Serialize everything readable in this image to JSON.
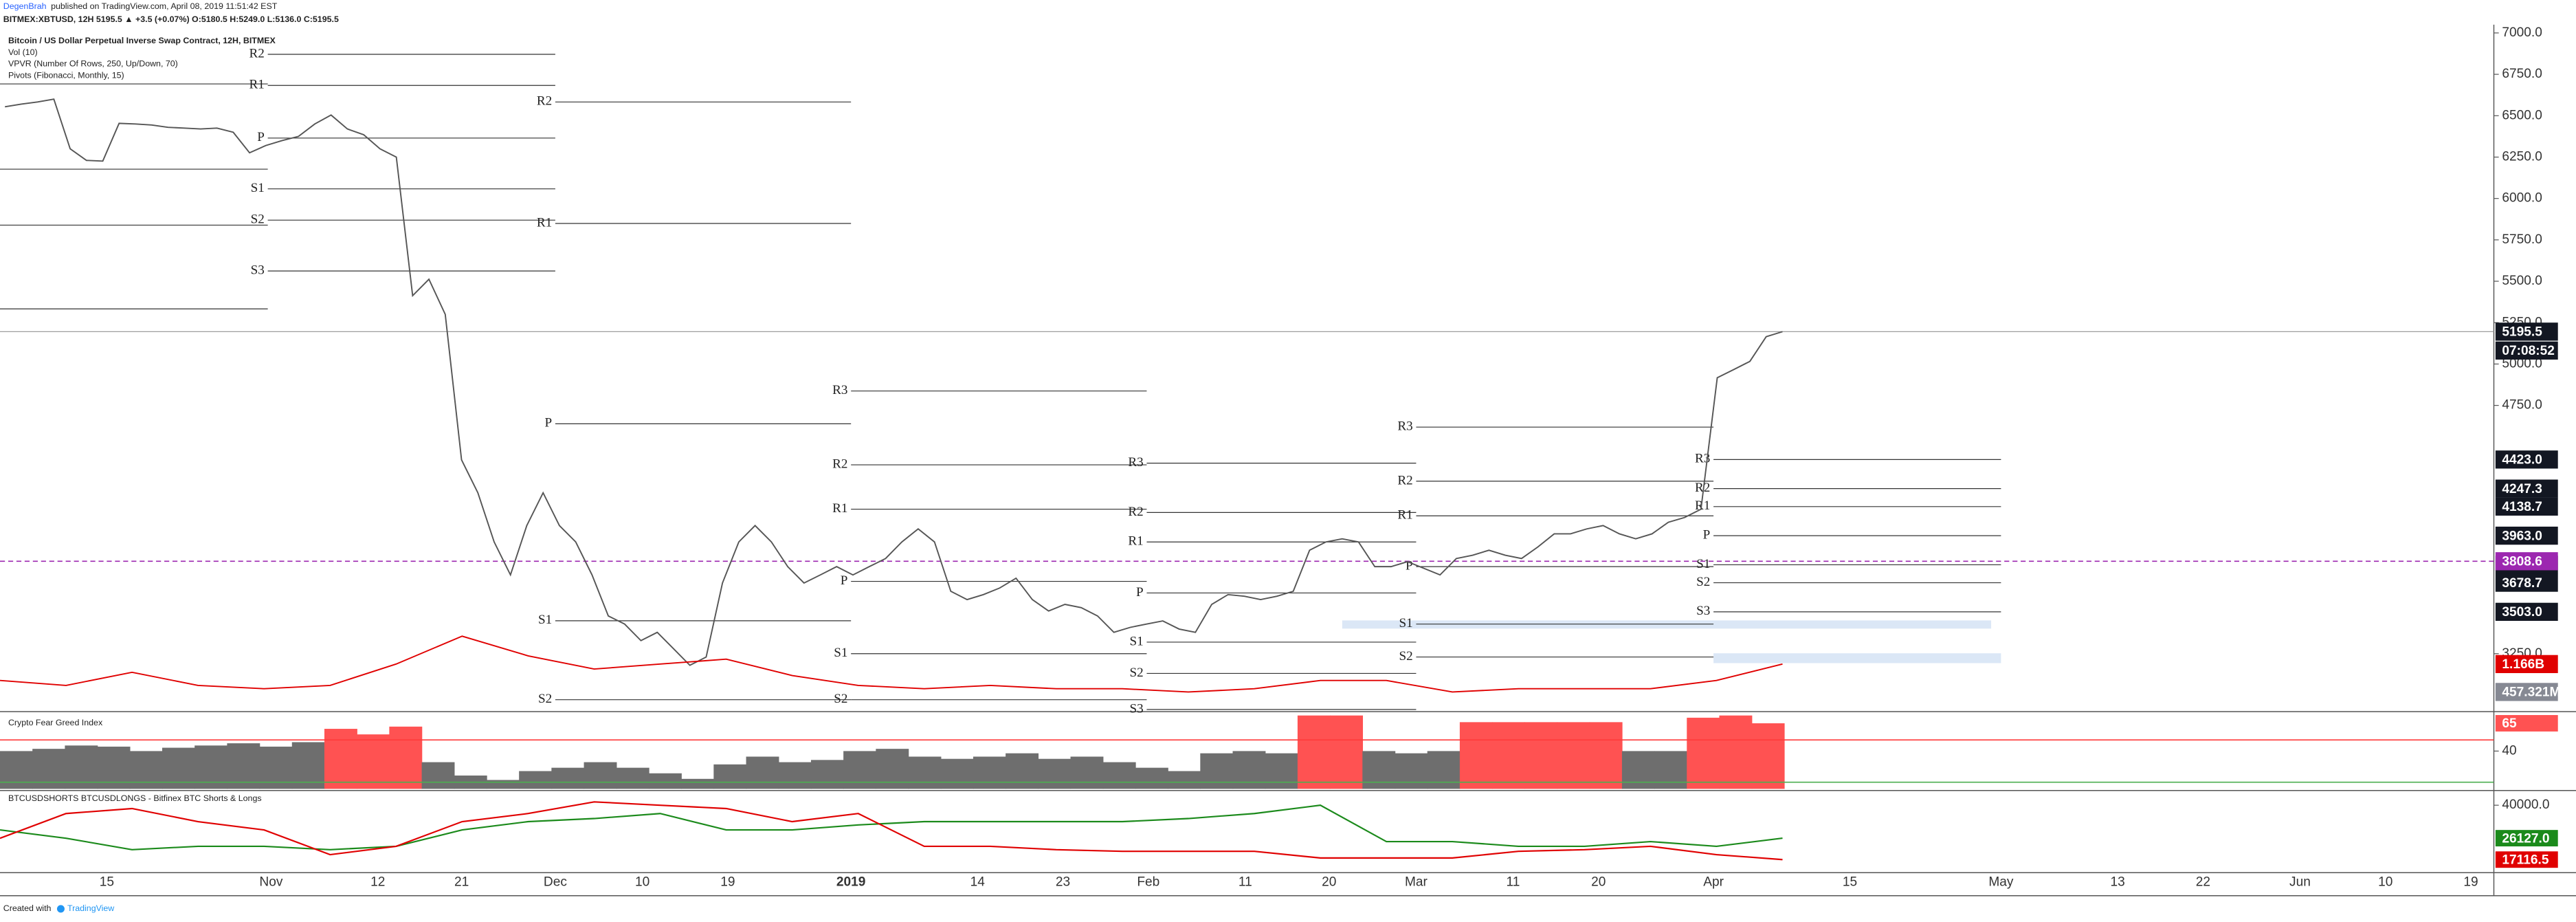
{
  "header": {
    "author": "DegenBrah",
    "published": "published on TradingView.com, April 08, 2019 11:51:42 EST",
    "symbol_line": "BITMEX:XBTUSD, 12H 5195.5 ▲ +3.5 (+0.07%) O:5180.5 H:5249.0 L:5136.0 C:5195.5",
    "footer": "Created with",
    "footer_brand": "TradingView"
  },
  "time_axis": {
    "labels": [
      "15",
      "Nov",
      "12",
      "21",
      "Dec",
      "10",
      "19",
      "2019",
      "14",
      "23",
      "Feb",
      "11",
      "20",
      "Mar",
      "11",
      "20",
      "Apr",
      "15",
      "May",
      "13",
      "22",
      "Jun",
      "10",
      "19"
    ]
  },
  "chart_data": [
    {
      "type": "line",
      "title": "Bitcoin / US Dollar Perpetual Inverse Swap Contract, 12H, BITMEX",
      "indicators": [
        "Vol (10)",
        "VPVR (Number Of Rows, 250, Up/Down, 70)",
        "Pivots (Fibonacci, Monthly, 15)"
      ],
      "ylim": [
        2910,
        7050
      ],
      "yticks": [
        {
          "value": 7000,
          "label": "7000.0"
        },
        {
          "value": 6750,
          "label": "6750.0"
        },
        {
          "value": 6500,
          "label": "6500.0"
        },
        {
          "value": 6250,
          "label": "6250.0"
        },
        {
          "value": 6000,
          "label": "6000.0"
        },
        {
          "value": 5750,
          "label": "5750.0"
        },
        {
          "value": 5500,
          "label": "5500.0"
        },
        {
          "value": 5250,
          "label": "5250.0"
        },
        {
          "value": 5000,
          "label": "5000.0"
        },
        {
          "value": 4750,
          "label": "4750.0"
        },
        {
          "value": 3250,
          "label": "3250.0"
        }
      ],
      "price": {
        "color": "#555555",
        "values": [
          6554,
          6570,
          6583,
          6600,
          6300,
          6230,
          6226,
          6454,
          6450,
          6444,
          6430,
          6425,
          6420,
          6425,
          6400,
          6276,
          6320,
          6350,
          6375,
          6450,
          6504,
          6420,
          6385,
          6300,
          6250,
          5413,
          5512,
          5300,
          4421,
          4222,
          3925,
          3726,
          4024,
          4222,
          4024,
          3925,
          3726,
          3478,
          3429,
          3329,
          3379,
          3280,
          3180,
          3230,
          3677,
          3925,
          4024,
          3925,
          3776,
          3677,
          3726,
          3776,
          3726,
          3776,
          3825,
          3925,
          4004,
          3925,
          3627,
          3577,
          3607,
          3647,
          3706,
          3577,
          3508,
          3548,
          3528,
          3478,
          3379,
          3409,
          3429,
          3448,
          3399,
          3379,
          3548,
          3607,
          3597,
          3577,
          3597,
          3627,
          3875,
          3925,
          3944,
          3925,
          3776,
          3776,
          3806,
          3766,
          3726,
          3825,
          3845,
          3875,
          3845,
          3825,
          3895,
          3974,
          3974,
          4004,
          4024,
          3974,
          3944,
          3974,
          4044,
          4073,
          4123,
          4917,
          4966,
          5016,
          5165,
          5195.5
        ]
      },
      "last_price": 5195.5,
      "countdown": "07:08:52",
      "poc": 3808.6,
      "poc_color": "#9c27b0",
      "volume_ma": {
        "color": "#e00000",
        "axis": "y2",
        "values": [
          749000000,
          624000000,
          957000000,
          624000000,
          540000000,
          624000000,
          1166000000,
          1874000000,
          1374000000,
          1040000000,
          1166000000,
          1290000000,
          874000000,
          624000000,
          540000000,
          624000000,
          540000000,
          540000000,
          457000000,
          540000000,
          749000000,
          749000000,
          457000000,
          540000000,
          540000000,
          540000000,
          749000000,
          1166000000
        ]
      },
      "y2lim": [
        0,
        17400000000
      ],
      "volume_tags": [
        {
          "value": 1166000000,
          "label": "1.166B",
          "color": "#e00000"
        },
        {
          "value": 457321000,
          "label": "457.321M",
          "color": "#868993"
        }
      ],
      "pivots": [
        {
          "levels": [
            {
              "value": 6692
            },
            {
              "value": 6177
            },
            {
              "value": 5839
            },
            {
              "value": 5333
            }
          ]
        },
        {
          "levels": [
            {
              "label": "R2",
              "value": 6871
            },
            {
              "label": "R1",
              "value": 6683
            },
            {
              "label": "P",
              "value": 6365
            },
            {
              "label": "S1",
              "value": 6058
            },
            {
              "label": "S2",
              "value": 5869
            },
            {
              "label": "S3",
              "value": 5562
            }
          ]
        },
        {
          "levels": [
            {
              "label": "R2",
              "value": 6583
            },
            {
              "label": "R1",
              "value": 5849
            },
            {
              "label": "P",
              "value": 4639
            },
            {
              "label": "S1",
              "value": 3449
            },
            {
              "label": "S2",
              "value": 2972
            }
          ]
        },
        {
          "levels": [
            {
              "label": "R3",
              "value": 4837
            },
            {
              "label": "R2",
              "value": 4391
            },
            {
              "label": "R1",
              "value": 4123
            },
            {
              "label": "P",
              "value": 3687
            },
            {
              "label": "S1",
              "value": 3250
            },
            {
              "label": "S2",
              "value": 2972
            }
          ]
        },
        {
          "levels": [
            {
              "label": "R3",
              "value": 4401
            },
            {
              "label": "R2",
              "value": 4103
            },
            {
              "label": "R1",
              "value": 3925
            },
            {
              "label": "P",
              "value": 3617
            },
            {
              "label": "S1",
              "value": 3320
            },
            {
              "label": "S2",
              "value": 3131
            },
            {
              "label": "S3",
              "value": 2913
            }
          ]
        },
        {
          "levels": [
            {
              "label": "R3",
              "value": 4619
            },
            {
              "label": "R2",
              "value": 4292
            },
            {
              "label": "R1",
              "value": 4083
            },
            {
              "label": "P",
              "value": 3776
            },
            {
              "label": "S1",
              "value": 3429
            },
            {
              "label": "S2",
              "value": 3230
            }
          ]
        },
        {
          "levels": [
            {
              "label": "R3",
              "value": 4423,
              "tag": "4423.0"
            },
            {
              "label": "R2",
              "value": 4247.3
            },
            {
              "label": "R1",
              "value": 4138.7
            },
            {
              "label": "P",
              "value": 3963,
              "tag": "3963.0"
            },
            {
              "label": "S1",
              "value": 3787.3
            },
            {
              "label": "S2",
              "value": 3678.7
            },
            {
              "label": "S3",
              "value": 3503,
              "tag": "3503.0"
            }
          ]
        }
      ]
    },
    {
      "type": "bar",
      "title": "Crypto Fear Greed Index",
      "values": [
        40,
        42,
        45,
        44,
        40,
        43,
        45,
        47,
        44,
        48,
        60,
        55,
        62,
        30,
        18,
        14,
        22,
        25,
        30,
        25,
        20,
        15,
        28,
        35,
        30,
        32,
        40,
        42,
        35,
        33,
        35,
        38,
        33,
        35,
        30,
        25,
        22,
        38,
        40,
        38,
        72,
        72,
        40,
        38,
        40,
        66,
        66,
        66,
        66,
        66,
        40,
        40,
        70,
        72,
        65
      ],
      "ylim": [
        6,
        74
      ],
      "yticks": [
        40
      ],
      "upper_line": 50,
      "lower_line": 12,
      "colors": {
        "high": "#ff5252",
        "normal": "#6e6e6e",
        "upper_line": "#ff3b3b",
        "lower_line": "#4caf50"
      }
    },
    {
      "type": "line",
      "title": "BTCUSDSHORTS BTCUSDLONGS - Bitfinex BTC Shorts & Longs",
      "series": [
        {
          "color": "#1b8a1b",
          "values": [
            29600,
            26100,
            21300,
            22700,
            22700,
            21300,
            22700,
            29600,
            33100,
            34400,
            36500,
            29600,
            29600,
            31700,
            33100,
            33100,
            33100,
            33100,
            34400,
            36500,
            40000,
            24700,
            24700,
            22700,
            22700,
            24700,
            22700,
            26127
          ],
          "tag": "26127.0"
        },
        {
          "color": "#e00000",
          "values": [
            26100,
            36500,
            38600,
            33100,
            29600,
            19200,
            22700,
            33100,
            36500,
            41400,
            40000,
            38600,
            33100,
            36500,
            22700,
            22700,
            21300,
            20600,
            20600,
            20600,
            17800,
            17800,
            17800,
            20600,
            21300,
            22700,
            19200,
            17116.5
          ]
        }
      ],
      "ylim": [
        12300,
        45500
      ],
      "yticks": [
        {
          "value": 40000,
          "label": "40000.0"
        }
      ]
    }
  ]
}
